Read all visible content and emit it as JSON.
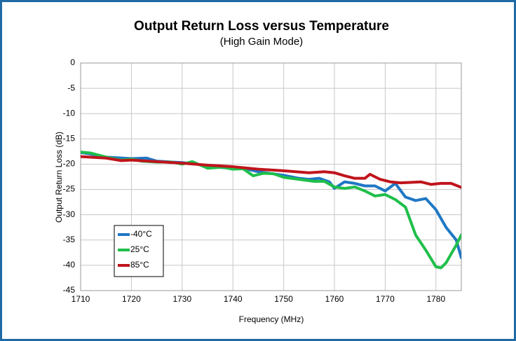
{
  "chart_data": {
    "type": "line",
    "title": "Output Return Loss versus Temperature",
    "subtitle": "(High Gain Mode)",
    "x_label": "Frequency (MHz)",
    "y_label": "Output Return Loss (dB)",
    "xlim": [
      1710,
      1785
    ],
    "xticks": [
      1710,
      1720,
      1730,
      1740,
      1750,
      1760,
      1770,
      1780
    ],
    "ylim": [
      -45,
      0
    ],
    "yticks": [
      0,
      -5,
      -10,
      -15,
      -20,
      -25,
      -30,
      -35,
      -40,
      -45
    ],
    "grid": true,
    "legend": "lower left",
    "series": [
      {
        "name": "-40°C",
        "color": "#1f77c4",
        "x": [
          1710,
          1712,
          1715,
          1720,
          1723,
          1725,
          1730,
          1733,
          1735,
          1740,
          1742,
          1745,
          1750,
          1753,
          1755,
          1757,
          1759,
          1760,
          1762,
          1764,
          1766,
          1768,
          1770,
          1772,
          1774,
          1776,
          1778,
          1780,
          1782,
          1784,
          1785
        ],
        "values": [
          -17.7,
          -18,
          -18.6,
          -18.9,
          -18.8,
          -19.4,
          -19.7,
          -20,
          -20.5,
          -20.8,
          -20.8,
          -21.5,
          -22.2,
          -22.8,
          -23,
          -22.8,
          -23.5,
          -24.8,
          -23.5,
          -23.8,
          -24.3,
          -24.3,
          -25.3,
          -23.8,
          -26.5,
          -27.2,
          -26.8,
          -29,
          -32.5,
          -35,
          -38.5
        ]
      },
      {
        "name": "25°C",
        "color": "#1fbf4a",
        "x": [
          1710,
          1712,
          1715,
          1718,
          1720,
          1722,
          1725,
          1728,
          1730,
          1732,
          1735,
          1738,
          1740,
          1742,
          1744,
          1746,
          1748,
          1750,
          1753,
          1756,
          1758,
          1760,
          1762,
          1764,
          1766,
          1768,
          1770,
          1772,
          1774,
          1776,
          1778,
          1780,
          1781,
          1782,
          1784,
          1785
        ],
        "values": [
          -17.6,
          -17.8,
          -18.6,
          -19.2,
          -19,
          -19.4,
          -19.6,
          -19.6,
          -20,
          -19.5,
          -20.8,
          -20.6,
          -21,
          -20.9,
          -22.3,
          -21.8,
          -21.9,
          -22.6,
          -23,
          -23.4,
          -23.4,
          -24.5,
          -24.8,
          -24.5,
          -25.3,
          -26.3,
          -26,
          -27,
          -28.5,
          -34,
          -37,
          -40.3,
          -40.5,
          -39.5,
          -36,
          -34
        ]
      },
      {
        "name": "85°C",
        "color": "#c0141c",
        "x": [
          1710,
          1715,
          1718,
          1720,
          1725,
          1730,
          1735,
          1740,
          1745,
          1750,
          1755,
          1758,
          1760,
          1762,
          1764,
          1766,
          1767,
          1769,
          1771,
          1773,
          1775,
          1777,
          1779,
          1781,
          1783,
          1785
        ],
        "values": [
          -18.5,
          -18.8,
          -19.3,
          -19.2,
          -19.5,
          -19.8,
          -20.2,
          -20.5,
          -21,
          -21.3,
          -21.7,
          -21.5,
          -21.7,
          -22.3,
          -22.8,
          -22.8,
          -22,
          -23,
          -23.5,
          -23.7,
          -23.6,
          -23.5,
          -24,
          -23.8,
          -23.8,
          -24.6
        ]
      }
    ]
  }
}
